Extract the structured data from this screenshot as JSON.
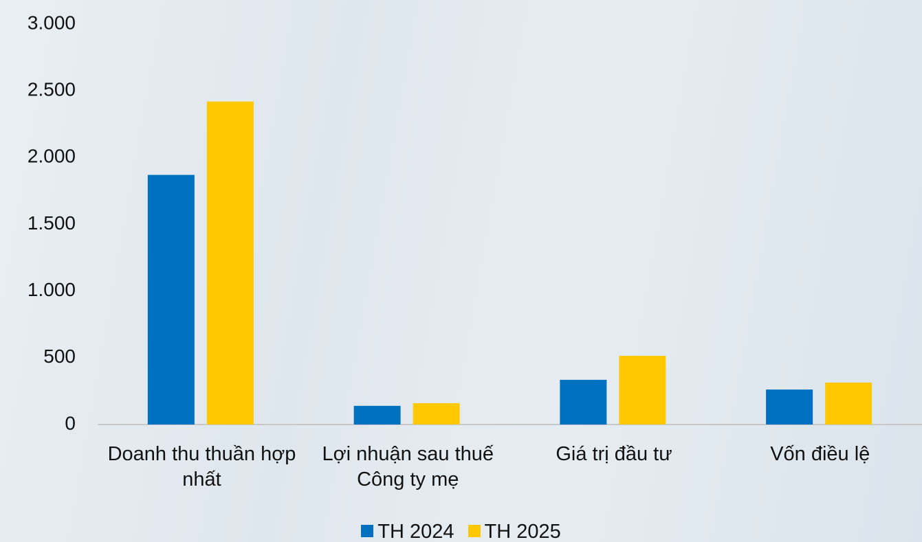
{
  "chart_data": {
    "type": "bar",
    "categories": [
      "Doanh thu thuần hợp nhất",
      "Lợi nhuận sau thuế Công ty mẹ",
      "Giá trị đầu tư",
      "Vốn điều lệ"
    ],
    "series": [
      {
        "name": "TH 2024",
        "color": "#0070c0",
        "values": [
          1870,
          140,
          335,
          262
        ]
      },
      {
        "name": "TH 2025",
        "color": "#ffc800",
        "values": [
          2420,
          160,
          515,
          314
        ]
      }
    ],
    "ylim": [
      0,
      3000
    ],
    "yticks": [
      0,
      500,
      {
        "value": 1000,
        "label": "1.000"
      },
      {
        "value": 1500,
        "label": "1.500"
      },
      {
        "value": 2000,
        "label": "2.000"
      },
      {
        "value": 2500,
        "label": "2.500"
      },
      {
        "value": 3000,
        "label": "3.000"
      }
    ],
    "legend": "bottom"
  }
}
